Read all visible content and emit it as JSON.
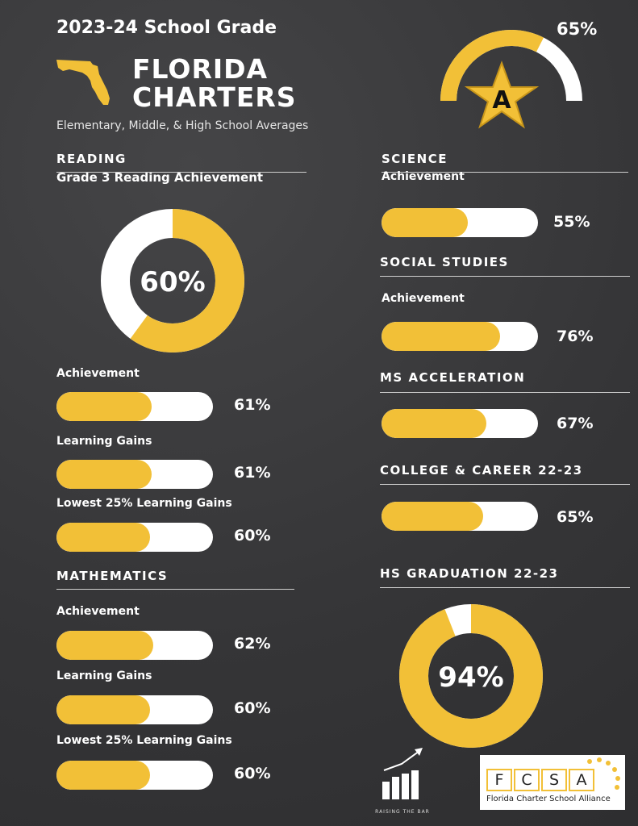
{
  "header": {
    "title": "2023-24 School Grade",
    "brand_line1": "FLORIDA",
    "brand_line2": "CHARTERS",
    "subtitle": "Elementary, Middle, & High School Averages"
  },
  "grade": {
    "letter": "A",
    "percent_label": "65%",
    "value": 65
  },
  "reading": {
    "section": "READING",
    "subtitle": "Grade 3 Reading Achievement",
    "donut": {
      "label": "60%",
      "value": 60
    },
    "metrics": [
      {
        "label": "Achievement",
        "pct_label": "61%",
        "value": 61
      },
      {
        "label": "Learning Gains",
        "pct_label": "61%",
        "value": 61
      },
      {
        "label": "Lowest 25% Learning Gains",
        "pct_label": "60%",
        "value": 60
      }
    ]
  },
  "mathematics": {
    "section": "MATHEMATICS",
    "metrics": [
      {
        "label": "Achievement",
        "pct_label": "62%",
        "value": 62
      },
      {
        "label": "Learning Gains",
        "pct_label": "60%",
        "value": 60
      },
      {
        "label": "Lowest 25% Learning Gains",
        "pct_label": "60%",
        "value": 60
      }
    ]
  },
  "science": {
    "section": "SCIENCE",
    "label": "Achievement",
    "pct_label": "55%",
    "value": 55
  },
  "social_studies": {
    "section": "SOCIAL STUDIES",
    "label": "Achievement",
    "pct_label": "76%",
    "value": 76
  },
  "ms_acceleration": {
    "section": "MS ACCELERATION",
    "pct_label": "67%",
    "value": 67
  },
  "college_career": {
    "section": "COLLEGE & CAREER 22-23",
    "pct_label": "65%",
    "value": 65
  },
  "hs_graduation": {
    "section": "HS GRADUATION 22-23",
    "donut": {
      "label": "94%",
      "value": 94
    }
  },
  "footer": {
    "raising_logo_text": "RAISING THE BAR",
    "fcsa_letters": [
      "F",
      "C",
      "S",
      "A"
    ],
    "fcsa_name": "Florida Charter School Alliance"
  },
  "colors": {
    "accent": "#f2c037",
    "track": "#ffffff",
    "background": "#3a3a3c"
  }
}
